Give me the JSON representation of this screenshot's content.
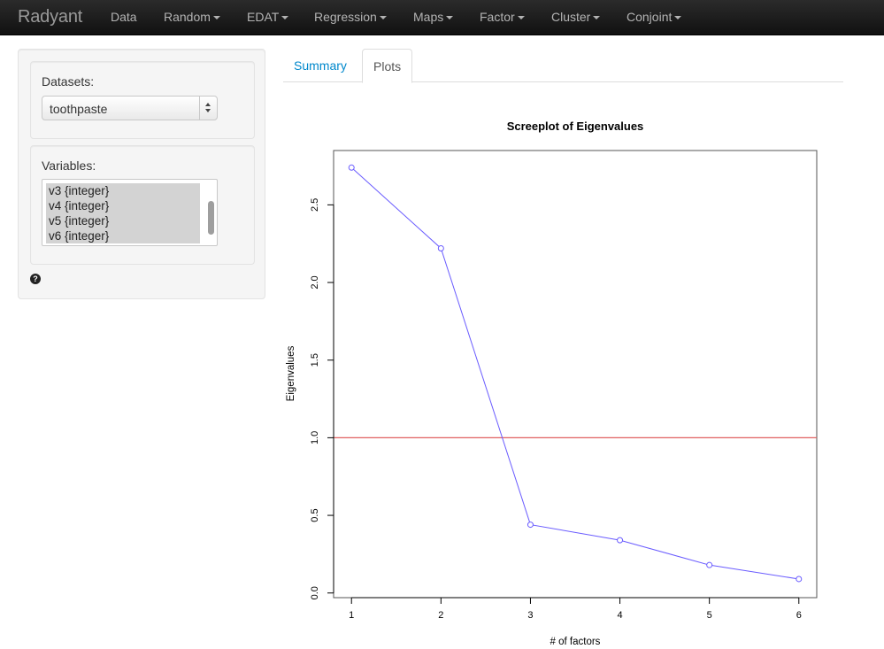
{
  "navbar": {
    "brand": "Radyant",
    "items": [
      {
        "label": "Data",
        "dropdown": false
      },
      {
        "label": "Random",
        "dropdown": true
      },
      {
        "label": "EDAT",
        "dropdown": true
      },
      {
        "label": "Regression",
        "dropdown": true
      },
      {
        "label": "Maps",
        "dropdown": true
      },
      {
        "label": "Factor",
        "dropdown": true
      },
      {
        "label": "Cluster",
        "dropdown": true
      },
      {
        "label": "Conjoint",
        "dropdown": true
      }
    ]
  },
  "sidebar": {
    "datasets_label": "Datasets:",
    "dataset_selected": "toothpaste",
    "variables_label": "Variables:",
    "variables": [
      "v3 {integer}",
      "v4 {integer}",
      "v5 {integer}",
      "v6 {integer}"
    ],
    "help_icon": "question-circle-icon",
    "help_glyph": "?"
  },
  "tabs": [
    {
      "label": "Summary",
      "active": false
    },
    {
      "label": "Plots",
      "active": true
    }
  ],
  "chart_data": {
    "type": "line",
    "title": "Screeplot of Eigenvalues",
    "xlabel": "# of factors",
    "ylabel": "Eigenvalues",
    "x": [
      1,
      2,
      3,
      4,
      5,
      6
    ],
    "series": [
      {
        "values": [
          2.74,
          2.22,
          0.44,
          0.34,
          0.18,
          0.09
        ],
        "color": "#6a5cff",
        "marker": "open-circle"
      }
    ],
    "reference_line": {
      "y": 1.0,
      "color": "#e06060"
    },
    "xticks": [
      "1",
      "2",
      "3",
      "4",
      "5",
      "6"
    ],
    "yticks": [
      "0.0",
      "0.5",
      "1.0",
      "1.5",
      "2.0",
      "2.5"
    ],
    "xlim": [
      0.8,
      6.2
    ],
    "ylim": [
      -0.03,
      2.85
    ],
    "grid": false,
    "legend": "none"
  }
}
